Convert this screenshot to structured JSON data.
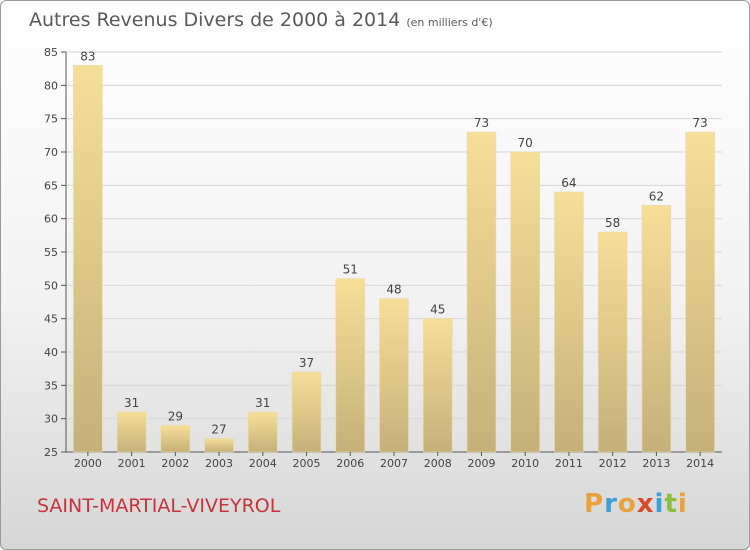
{
  "header": {
    "title": "Autres Revenus Divers de 2000 à 2014",
    "subtitle": "(en milliers d'€)"
  },
  "footer": {
    "commune": "SAINT-MARTIAL-VIVEYROL",
    "logo_letters": [
      "P",
      "r",
      "o",
      "x",
      "i",
      "t",
      "i"
    ],
    "logo_colors": [
      "#e8a13c",
      "#3ca0d8",
      "#e8a13c",
      "#d84a2a",
      "#3ca0d8",
      "#8cbf3c",
      "#e8a13c"
    ]
  },
  "colors": {
    "bar_light": "#f6df98",
    "bar_dark": "#c5b07a",
    "axis": "#555555",
    "grid": "#d8d8d8",
    "commune": "#c8323c"
  },
  "chart_data": {
    "type": "bar",
    "title": "Autres Revenus Divers de 2000 à 2014",
    "subtitle": "(en milliers d'€)",
    "categories": [
      "2000",
      "2001",
      "2002",
      "2003",
      "2004",
      "2005",
      "2006",
      "2007",
      "2008",
      "2009",
      "2010",
      "2011",
      "2012",
      "2013",
      "2014"
    ],
    "values": [
      83,
      31,
      29,
      27,
      31,
      37,
      51,
      48,
      45,
      73,
      70,
      64,
      58,
      62,
      73
    ],
    "ylim": [
      25,
      85
    ],
    "yticks": [
      25,
      30,
      35,
      40,
      45,
      50,
      55,
      60,
      65,
      70,
      75,
      80,
      85
    ],
    "grid": true,
    "data_labels": true
  }
}
